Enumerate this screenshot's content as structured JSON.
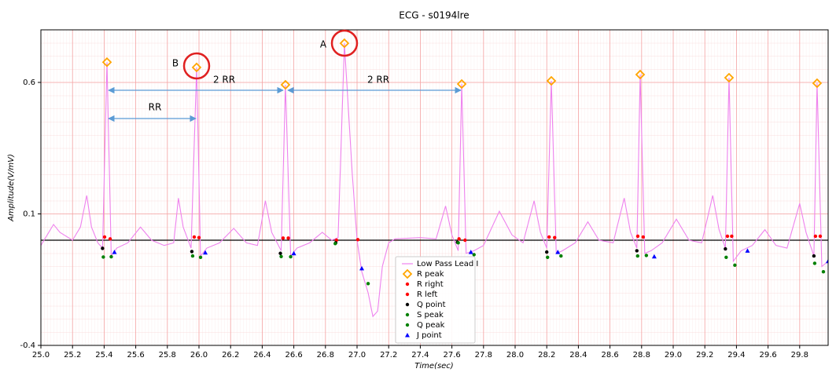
{
  "chart_data": {
    "type": "ecg",
    "title": "ECG - s0194lre",
    "xlabel": "Time(sec)",
    "ylabel": "Amplitude(V/mV)",
    "xlim": [
      25.0,
      29.98
    ],
    "ylim": [
      -0.4,
      0.8
    ],
    "xticks": [
      {
        "value": 25.0,
        "label": "25.0"
      },
      {
        "value": 25.2,
        "label": "25.2"
      },
      {
        "value": 25.4,
        "label": "25.4"
      },
      {
        "value": 25.6,
        "label": "25.6"
      },
      {
        "value": 25.8,
        "label": "25.8"
      },
      {
        "value": 26.0,
        "label": "26.0"
      },
      {
        "value": 26.2,
        "label": "26.2"
      },
      {
        "value": 26.4,
        "label": "26.4"
      },
      {
        "value": 26.6,
        "label": "26.6"
      },
      {
        "value": 26.8,
        "label": "26.8"
      },
      {
        "value": 27.0,
        "label": "27.0"
      },
      {
        "value": 27.2,
        "label": "27.2"
      },
      {
        "value": 27.4,
        "label": "27.4"
      },
      {
        "value": 27.6,
        "label": "27.6"
      },
      {
        "value": 27.8,
        "label": "27.8"
      },
      {
        "value": 28.0,
        "label": "28.0"
      },
      {
        "value": 28.2,
        "label": "28.2"
      },
      {
        "value": 28.4,
        "label": "28.4"
      },
      {
        "value": 28.6,
        "label": "28.6"
      },
      {
        "value": 28.8,
        "label": "28.8"
      },
      {
        "value": 29.0,
        "label": "29.0"
      },
      {
        "value": 29.2,
        "label": "29.2"
      },
      {
        "value": 29.4,
        "label": "29.4"
      },
      {
        "value": 29.6,
        "label": "29.6"
      },
      {
        "value": 29.8,
        "label": "29.8"
      }
    ],
    "yticks": [
      -0.4,
      0.1,
      0.6
    ],
    "grid": true,
    "hline": 0,
    "legend": "lower center",
    "annotations": [
      "A",
      "B",
      "2 RR",
      "2 RR",
      "RR"
    ],
    "series": [
      {
        "name": "Low Pass Lead I",
        "color": "#ee82ee",
        "marker": "line",
        "x": [
          25.0,
          25.05,
          25.08,
          25.12,
          25.2,
          25.25,
          25.29,
          25.32,
          25.36,
          25.39,
          25.418,
          25.445,
          25.48,
          25.55,
          25.63,
          25.7,
          25.78,
          25.84,
          25.87,
          25.9,
          25.95,
          25.985,
          26.01,
          26.05,
          26.13,
          26.22,
          26.3,
          26.37,
          26.42,
          26.46,
          26.52,
          26.547,
          26.58,
          26.62,
          26.7,
          26.78,
          26.84,
          26.88,
          26.92,
          26.97,
          27.0,
          27.03,
          27.07,
          27.1,
          27.13,
          27.16,
          27.2,
          27.24,
          27.4,
          27.5,
          27.56,
          27.6,
          27.64,
          27.662,
          27.69,
          27.74,
          27.8,
          27.9,
          27.98,
          28.05,
          28.12,
          28.16,
          28.2,
          28.229,
          28.26,
          28.3,
          28.38,
          28.46,
          28.53,
          28.62,
          28.69,
          28.73,
          28.77,
          28.791,
          28.82,
          28.86,
          28.93,
          29.02,
          29.1,
          29.18,
          29.25,
          29.29,
          29.33,
          29.353,
          29.38,
          29.43,
          29.5,
          29.58,
          29.65,
          29.72,
          29.8,
          29.84,
          29.89,
          29.91,
          29.94,
          29.98
        ],
        "values": [
          -0.02,
          0.03,
          0.06,
          0.03,
          0.0,
          0.05,
          0.17,
          0.05,
          -0.01,
          -0.03,
          0.677,
          -0.06,
          -0.03,
          -0.01,
          0.05,
          0.0,
          -0.02,
          -0.01,
          0.16,
          0.05,
          -0.03,
          0.657,
          -0.06,
          -0.03,
          -0.01,
          0.045,
          -0.01,
          -0.02,
          0.15,
          0.03,
          -0.04,
          0.591,
          -0.06,
          -0.03,
          -0.01,
          0.03,
          0.0,
          0.01,
          0.749,
          0.25,
          0.0,
          -0.12,
          -0.2,
          -0.29,
          -0.27,
          -0.1,
          -0.01,
          0.005,
          0.01,
          0.005,
          0.13,
          0.02,
          -0.04,
          0.594,
          -0.05,
          -0.04,
          -0.02,
          0.11,
          0.02,
          -0.01,
          0.15,
          0.03,
          -0.03,
          0.606,
          -0.05,
          -0.04,
          -0.01,
          0.07,
          0.0,
          -0.01,
          0.16,
          0.03,
          -0.03,
          0.63,
          -0.05,
          -0.04,
          -0.01,
          0.08,
          0.0,
          -0.01,
          0.17,
          0.04,
          -0.03,
          0.618,
          -0.08,
          -0.04,
          -0.02,
          0.04,
          -0.02,
          -0.03,
          0.14,
          0.03,
          -0.06,
          0.597,
          -0.1,
          -0.08
        ]
      },
      {
        "name": "R peak",
        "color": "#ffa500",
        "marker": "diamond",
        "x": [
          25.418,
          25.985,
          26.547,
          26.92,
          27.662,
          28.229,
          28.791,
          29.353,
          29.91
        ],
        "values": [
          0.677,
          0.657,
          0.591,
          0.749,
          0.594,
          0.606,
          0.63,
          0.618,
          0.597
        ]
      },
      {
        "name": "R right",
        "color": "#ff0000",
        "marker": "dot",
        "x": [
          25.403,
          25.97,
          26.532,
          26.87,
          27.645,
          28.215,
          28.776,
          29.343,
          29.9
        ],
        "values": [
          0.012,
          0.012,
          0.008,
          0.0,
          0.005,
          0.012,
          0.015,
          0.015,
          0.015
        ]
      },
      {
        "name": "R left",
        "color": "#ff0000",
        "marker": "dot",
        "x": [
          25.438,
          26.0,
          26.565,
          27.005,
          27.683,
          28.25,
          28.81,
          29.37,
          29.93
        ],
        "values": [
          0.005,
          0.01,
          0.008,
          0.002,
          0.0,
          0.01,
          0.012,
          0.015,
          0.015
        ]
      },
      {
        "name": "Q point",
        "color": "#000000",
        "marker": "dot",
        "x": [
          25.39,
          25.955,
          26.515,
          26.865,
          27.635,
          28.2,
          28.77,
          29.33,
          29.89
        ],
        "values": [
          -0.031,
          -0.043,
          -0.05,
          -0.01,
          -0.008,
          -0.045,
          -0.04,
          -0.033,
          -0.06
        ]
      },
      {
        "name": "S peak",
        "color": "#008000",
        "marker": "dot",
        "x": [
          25.395,
          25.96,
          26.52,
          26.862,
          27.64,
          28.205,
          28.775,
          29.335,
          29.895
        ],
        "values": [
          -0.064,
          -0.06,
          -0.062,
          -0.013,
          -0.01,
          -0.065,
          -0.06,
          -0.065,
          -0.088
        ]
      },
      {
        "name": "Q peak",
        "color": "#008000",
        "marker": "dot",
        "x": [
          25.445,
          26.01,
          26.58,
          27.07,
          27.74,
          28.29,
          28.83,
          29.39,
          29.95
        ],
        "values": [
          -0.063,
          -0.065,
          -0.063,
          -0.165,
          -0.055,
          -0.06,
          -0.058,
          -0.095,
          -0.12
        ]
      },
      {
        "name": "J point",
        "color": "#0000ff",
        "marker": "triangle",
        "x": [
          25.465,
          26.04,
          26.6,
          27.03,
          27.72,
          28.27,
          28.88,
          29.47,
          29.98
        ],
        "values": [
          -0.045,
          -0.047,
          -0.05,
          -0.107,
          -0.045,
          -0.045,
          -0.062,
          -0.04,
          -0.08
        ]
      }
    ]
  }
}
